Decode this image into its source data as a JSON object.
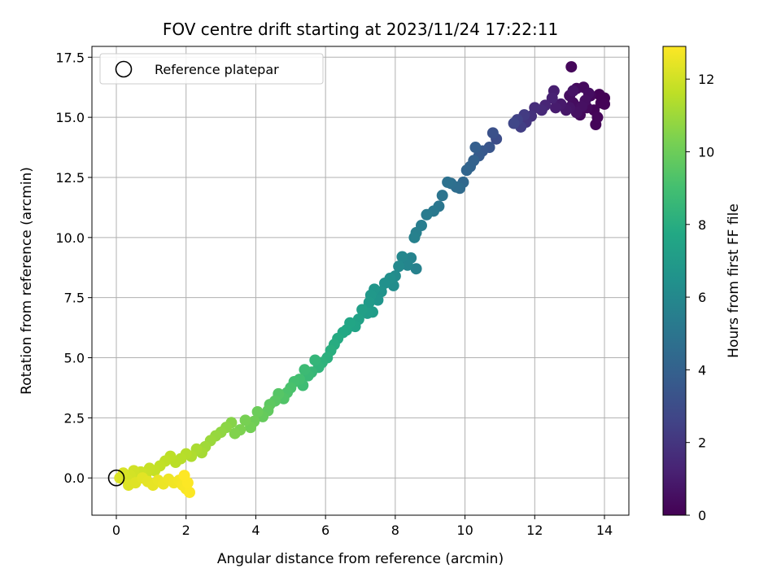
{
  "chart_data": {
    "type": "scatter",
    "title": "FOV centre drift starting at 2023/11/24 17:22:11",
    "xlabel": "Angular distance from reference (arcmin)",
    "ylabel": "Rotation from reference (arcmin)",
    "xlim": [
      -0.7,
      14.7
    ],
    "ylim": [
      -1.55,
      17.95
    ],
    "xticks": [
      0,
      2,
      4,
      6,
      8,
      10,
      12,
      14
    ],
    "xtick_labels": [
      "0",
      "2",
      "4",
      "6",
      "8",
      "10",
      "12",
      "14"
    ],
    "yticks": [
      0.0,
      2.5,
      5.0,
      7.5,
      10.0,
      12.5,
      15.0,
      17.5
    ],
    "ytick_labels": [
      "0.0",
      "2.5",
      "5.0",
      "7.5",
      "10.0",
      "12.5",
      "15.0",
      "17.5"
    ],
    "grid": true,
    "legend": {
      "position": "top-left",
      "entries": [
        "Reference platepar"
      ]
    },
    "reference_point": {
      "x": 0,
      "y": 0
    },
    "colorbar": {
      "label": "Hours from first FF file",
      "colormap": "viridis",
      "range": [
        0,
        12.9
      ],
      "ticks": [
        0,
        2,
        4,
        6,
        8,
        10,
        12
      ],
      "tick_labels": [
        "0",
        "2",
        "4",
        "6",
        "8",
        "10",
        "12"
      ]
    },
    "points": [
      [
        13.9,
        15.6,
        0.02
      ],
      [
        14.0,
        15.8,
        0.05
      ],
      [
        13.85,
        15.95,
        0.08
      ],
      [
        13.7,
        15.3,
        0.1
      ],
      [
        14.0,
        15.55,
        0.12
      ],
      [
        13.75,
        14.7,
        0.15
      ],
      [
        13.8,
        15.0,
        0.18
      ],
      [
        13.05,
        17.1,
        0.22
      ],
      [
        13.6,
        15.9,
        0.25
      ],
      [
        13.5,
        15.4,
        0.28
      ],
      [
        13.3,
        15.1,
        0.32
      ],
      [
        13.2,
        16.2,
        0.35
      ],
      [
        13.4,
        16.25,
        0.38
      ],
      [
        13.1,
        15.6,
        0.42
      ],
      [
        13.55,
        16.0,
        0.45
      ],
      [
        13.0,
        15.9,
        0.48
      ],
      [
        13.45,
        15.7,
        0.52
      ],
      [
        13.35,
        15.45,
        0.55
      ],
      [
        13.2,
        15.2,
        0.6
      ],
      [
        13.1,
        16.1,
        0.65
      ],
      [
        13.0,
        15.4,
        0.7
      ],
      [
        12.9,
        15.3,
        0.8
      ],
      [
        12.75,
        15.55,
        0.9
      ],
      [
        12.6,
        15.4,
        1.0
      ],
      [
        12.55,
        16.1,
        1.1
      ],
      [
        12.5,
        15.8,
        1.2
      ],
      [
        12.3,
        15.5,
        1.35
      ],
      [
        12.2,
        15.3,
        1.5
      ],
      [
        12.0,
        15.4,
        1.65
      ],
      [
        11.9,
        15.05,
        1.8
      ],
      [
        11.75,
        14.8,
        2.0
      ],
      [
        11.7,
        15.1,
        2.2
      ],
      [
        11.6,
        14.6,
        2.35
      ],
      [
        11.5,
        14.9,
        2.5
      ],
      [
        11.4,
        14.75,
        2.7
      ],
      [
        10.9,
        14.1,
        3.0
      ],
      [
        10.8,
        14.35,
        3.2
      ],
      [
        10.7,
        13.75,
        3.4
      ],
      [
        10.5,
        13.6,
        3.55
      ],
      [
        10.4,
        13.4,
        3.7
      ],
      [
        10.3,
        13.75,
        3.85
      ],
      [
        10.25,
        13.2,
        4.0
      ],
      [
        10.15,
        12.95,
        4.1
      ],
      [
        10.05,
        12.8,
        4.2
      ],
      [
        9.95,
        12.3,
        4.35
      ],
      [
        9.85,
        12.05,
        4.5
      ],
      [
        9.75,
        12.1,
        4.6
      ],
      [
        9.6,
        12.25,
        4.7
      ],
      [
        9.5,
        12.3,
        4.8
      ],
      [
        9.35,
        11.75,
        4.95
      ],
      [
        9.25,
        11.3,
        5.05
      ],
      [
        9.1,
        11.1,
        5.15
      ],
      [
        8.9,
        10.95,
        5.3
      ],
      [
        8.75,
        10.5,
        5.4
      ],
      [
        8.6,
        10.2,
        5.5
      ],
      [
        8.55,
        10.0,
        5.6
      ],
      [
        8.6,
        8.7,
        5.65
      ],
      [
        8.45,
        9.15,
        5.75
      ],
      [
        8.35,
        8.85,
        5.85
      ],
      [
        8.2,
        9.2,
        5.95
      ],
      [
        8.1,
        8.8,
        6.05
      ],
      [
        8.0,
        8.4,
        6.15
      ],
      [
        7.95,
        8.0,
        6.25
      ],
      [
        7.85,
        8.3,
        6.35
      ],
      [
        7.7,
        8.1,
        6.45
      ],
      [
        7.6,
        7.75,
        6.55
      ],
      [
        7.5,
        7.4,
        6.65
      ],
      [
        7.4,
        7.85,
        6.75
      ],
      [
        7.3,
        7.6,
        6.85
      ],
      [
        7.25,
        7.3,
        6.95
      ],
      [
        7.35,
        6.9,
        7.05
      ],
      [
        7.2,
        6.85,
        7.15
      ],
      [
        7.05,
        7.0,
        7.25
      ],
      [
        6.95,
        6.6,
        7.35
      ],
      [
        6.85,
        6.3,
        7.45
      ],
      [
        6.7,
        6.45,
        7.55
      ],
      [
        6.6,
        6.15,
        7.65
      ],
      [
        6.5,
        6.05,
        7.75
      ],
      [
        6.35,
        5.8,
        7.85
      ],
      [
        6.25,
        5.55,
        7.95
      ],
      [
        6.15,
        5.3,
        8.05
      ],
      [
        6.05,
        5.0,
        8.15
      ],
      [
        5.9,
        4.8,
        8.25
      ],
      [
        5.8,
        4.6,
        8.35
      ],
      [
        5.7,
        4.9,
        8.45
      ],
      [
        5.6,
        4.4,
        8.55
      ],
      [
        5.5,
        4.25,
        8.65
      ],
      [
        5.4,
        4.5,
        8.75
      ],
      [
        5.35,
        3.85,
        8.85
      ],
      [
        5.25,
        4.1,
        8.95
      ],
      [
        5.1,
        4.0,
        9.05
      ],
      [
        5.0,
        3.75,
        9.15
      ],
      [
        4.9,
        3.55,
        9.25
      ],
      [
        4.8,
        3.3,
        9.35
      ],
      [
        4.65,
        3.5,
        9.45
      ],
      [
        4.55,
        3.2,
        9.55
      ],
      [
        4.4,
        3.05,
        9.65
      ],
      [
        4.35,
        2.8,
        9.75
      ],
      [
        4.2,
        2.55,
        9.85
      ],
      [
        4.05,
        2.75,
        9.95
      ],
      [
        3.95,
        2.35,
        10.05
      ],
      [
        3.85,
        2.1,
        10.15
      ],
      [
        3.7,
        2.4,
        10.25
      ],
      [
        3.55,
        2.0,
        10.35
      ],
      [
        3.4,
        1.85,
        10.45
      ],
      [
        3.3,
        2.3,
        10.55
      ],
      [
        3.15,
        2.1,
        10.65
      ],
      [
        3.0,
        1.9,
        10.75
      ],
      [
        2.85,
        1.75,
        10.85
      ],
      [
        2.7,
        1.55,
        10.95
      ],
      [
        2.55,
        1.3,
        11.05
      ],
      [
        2.45,
        1.05,
        11.15
      ],
      [
        2.3,
        1.2,
        11.25
      ],
      [
        2.15,
        0.9,
        11.35
      ],
      [
        2.0,
        1.0,
        11.45
      ],
      [
        1.85,
        0.8,
        11.5
      ],
      [
        1.7,
        0.65,
        11.55
      ],
      [
        1.55,
        0.9,
        11.6
      ],
      [
        1.4,
        0.7,
        11.65
      ],
      [
        1.25,
        0.5,
        11.7
      ],
      [
        1.1,
        0.3,
        11.75
      ],
      [
        0.95,
        0.4,
        11.8
      ],
      [
        0.85,
        0.15,
        11.85
      ],
      [
        0.7,
        0.25,
        11.9
      ],
      [
        0.6,
        0.05,
        11.95
      ],
      [
        0.5,
        0.3,
        12.0
      ],
      [
        0.4,
        0.1,
        12.05
      ],
      [
        0.3,
        -0.05,
        12.1
      ],
      [
        0.2,
        0.2,
        12.15
      ],
      [
        0.1,
        0.0,
        12.2
      ],
      [
        0.35,
        -0.3,
        12.25
      ],
      [
        0.55,
        -0.2,
        12.3
      ],
      [
        0.75,
        0.0,
        12.35
      ],
      [
        0.9,
        -0.15,
        12.4
      ],
      [
        1.05,
        -0.3,
        12.45
      ],
      [
        1.2,
        -0.1,
        12.5
      ],
      [
        1.35,
        -0.25,
        12.55
      ],
      [
        1.5,
        -0.05,
        12.6
      ],
      [
        1.65,
        -0.2,
        12.65
      ],
      [
        1.8,
        -0.1,
        12.7
      ],
      [
        1.9,
        -0.3,
        12.75
      ],
      [
        2.0,
        -0.45,
        12.8
      ],
      [
        2.1,
        -0.6,
        12.85
      ],
      [
        2.05,
        -0.2,
        12.88
      ],
      [
        1.95,
        0.1,
        12.9
      ]
    ]
  }
}
